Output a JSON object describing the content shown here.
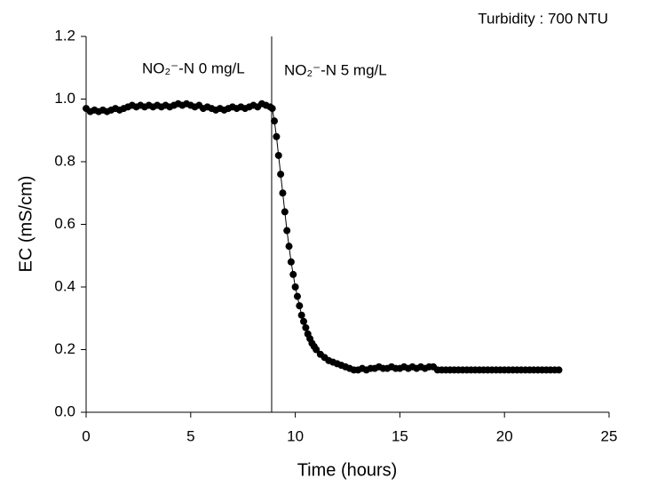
{
  "chart_data": {
    "type": "scatter_line",
    "note": "Turbidity : 700 NTU",
    "xlabel": "Time (hours)",
    "ylabel": "EC (mS/cm)",
    "annotations": [
      "NO₂⁻-N 0 mg/L",
      "NO₂⁻-N 5 mg/L"
    ],
    "vlines": [
      8.87
    ],
    "color": "#000000",
    "xlim": [
      0,
      25
    ],
    "xticks": [
      0,
      5,
      10,
      15,
      20,
      25
    ],
    "ylim": [
      0,
      1.2
    ],
    "yticks": [
      {
        "value": 0,
        "label": "0.0"
      },
      {
        "value": 0.2,
        "label": "0.2"
      },
      {
        "value": 0.4,
        "label": "0.4"
      },
      {
        "value": 0.6,
        "label": "0.6"
      },
      {
        "value": 0.8,
        "label": "0.8"
      },
      {
        "value": 1,
        "label": "1.0"
      },
      {
        "value": 1.2,
        "label": "1.2"
      }
    ],
    "x": [
      0,
      0.2,
      0.4,
      0.6,
      0.8,
      1.0,
      1.2,
      1.4,
      1.6,
      1.8,
      2.0,
      2.2,
      2.4,
      2.6,
      2.8,
      3.0,
      3.2,
      3.4,
      3.6,
      3.8,
      4.0,
      4.2,
      4.4,
      4.6,
      4.8,
      5.0,
      5.2,
      5.4,
      5.6,
      5.8,
      6.0,
      6.2,
      6.4,
      6.6,
      6.8,
      7.0,
      7.2,
      7.4,
      7.6,
      7.8,
      8.0,
      8.2,
      8.4,
      8.6,
      8.8,
      8.9,
      9.0,
      9.1,
      9.2,
      9.3,
      9.4,
      9.5,
      9.6,
      9.7,
      9.8,
      9.9,
      10.0,
      10.1,
      10.2,
      10.3,
      10.4,
      10.5,
      10.6,
      10.7,
      10.8,
      10.9,
      11.0,
      11.2,
      11.4,
      11.6,
      11.8,
      12.0,
      12.2,
      12.4,
      12.6,
      12.8,
      13.0,
      13.2,
      13.4,
      13.6,
      13.8,
      14.0,
      14.2,
      14.4,
      14.6,
      14.8,
      15.0,
      15.2,
      15.4,
      15.6,
      15.8,
      16.0,
      16.2,
      16.4,
      16.6,
      16.8,
      17.0,
      17.2,
      17.4,
      17.6,
      17.8,
      18.0,
      18.2,
      18.4,
      18.6,
      18.8,
      19.0,
      19.2,
      19.4,
      19.6,
      19.8,
      20.0,
      20.2,
      20.4,
      20.6,
      20.8,
      21.0,
      21.2,
      21.4,
      21.6,
      21.8,
      22.0,
      22.2,
      22.4,
      22.6
    ],
    "values": [
      0.97,
      0.96,
      0.965,
      0.96,
      0.965,
      0.96,
      0.965,
      0.97,
      0.965,
      0.97,
      0.975,
      0.98,
      0.975,
      0.98,
      0.975,
      0.98,
      0.975,
      0.98,
      0.975,
      0.98,
      0.975,
      0.98,
      0.985,
      0.98,
      0.985,
      0.98,
      0.975,
      0.98,
      0.97,
      0.975,
      0.97,
      0.965,
      0.97,
      0.965,
      0.97,
      0.975,
      0.97,
      0.975,
      0.97,
      0.975,
      0.98,
      0.975,
      0.985,
      0.98,
      0.975,
      0.97,
      0.93,
      0.88,
      0.82,
      0.76,
      0.7,
      0.64,
      0.58,
      0.53,
      0.48,
      0.44,
      0.4,
      0.37,
      0.34,
      0.31,
      0.29,
      0.27,
      0.25,
      0.235,
      0.22,
      0.21,
      0.2,
      0.185,
      0.175,
      0.165,
      0.16,
      0.155,
      0.15,
      0.145,
      0.14,
      0.135,
      0.135,
      0.14,
      0.135,
      0.14,
      0.14,
      0.145,
      0.14,
      0.14,
      0.145,
      0.14,
      0.14,
      0.145,
      0.14,
      0.145,
      0.14,
      0.145,
      0.14,
      0.145,
      0.145,
      0.135,
      0.135,
      0.135,
      0.135,
      0.135,
      0.135,
      0.135,
      0.135,
      0.135,
      0.135,
      0.135,
      0.135,
      0.135,
      0.135,
      0.135,
      0.135,
      0.135,
      0.135,
      0.135,
      0.135,
      0.135,
      0.135,
      0.135,
      0.135,
      0.135,
      0.135,
      0.135,
      0.135,
      0.135,
      0.135
    ]
  }
}
